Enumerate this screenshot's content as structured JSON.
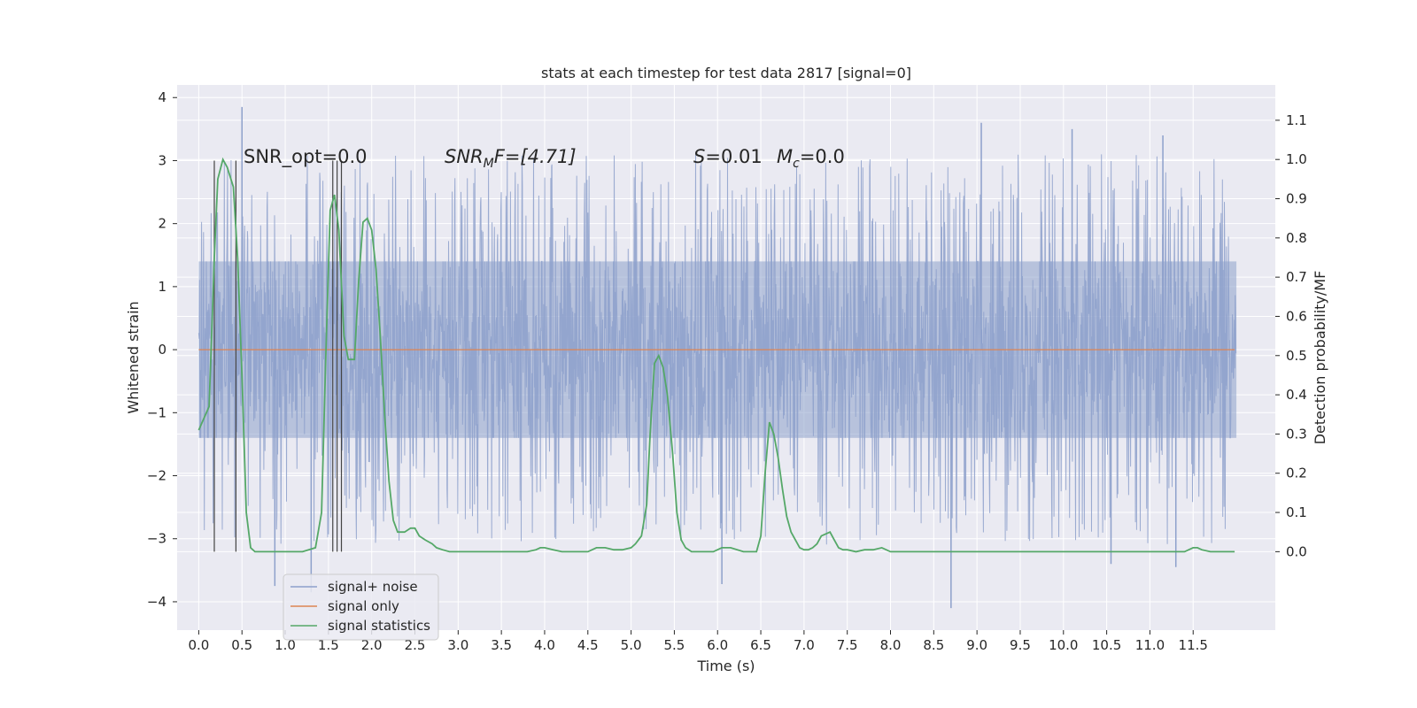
{
  "chart_data": {
    "type": "line",
    "title": "stats at each timestep for test data 2817 [signal=0]",
    "xlabel": "Time (s)",
    "ylabel_left": "Whitened strain",
    "ylabel_right": "Detection probability/MF",
    "xlim": [
      -0.25,
      12.45
    ],
    "ylim_left": [
      -4.45,
      4.2
    ],
    "ylim_right": [
      -0.2,
      1.19
    ],
    "x_ticks": [
      "0.0",
      "0.5",
      "1.0",
      "1.5",
      "2.0",
      "2.5",
      "3.0",
      "3.5",
      "4.0",
      "4.5",
      "5.0",
      "5.5",
      "6.0",
      "6.5",
      "7.0",
      "7.5",
      "8.0",
      "8.5",
      "9.0",
      "9.5",
      "10.0",
      "10.5",
      "11.0",
      "11.5"
    ],
    "y_ticks_left": [
      "−4",
      "−3",
      "−2",
      "−1",
      "0",
      "1",
      "2",
      "3",
      "4"
    ],
    "y_ticks_right": [
      "0.0",
      "0.1",
      "0.2",
      "0.3",
      "0.4",
      "0.5",
      "0.6",
      "0.7",
      "0.8",
      "0.9",
      "1.0",
      "1.1"
    ],
    "grid": true,
    "legend_position": "lower-left",
    "annotations": {
      "snr_opt_label": "SNR_opt=0.0",
      "snr_mf_main": "SNR",
      "snr_mf_sub": "M",
      "snr_mf_tail": "F=[4.71]",
      "s_main": "S",
      "s_tail": "=0.01",
      "mc_main": "M",
      "mc_sub": "c",
      "mc_tail": "=0.0"
    },
    "series": [
      {
        "name": "signal+ noise",
        "color": "#8da0cb",
        "axis": "left",
        "duration": 12.0,
        "amplitude_band": [
          -1.4,
          1.4
        ],
        "spikes": [
          [
            0.5,
            3.85
          ],
          [
            0.88,
            -3.75
          ],
          [
            1.3,
            -3.85
          ],
          [
            6.05,
            -3.72
          ],
          [
            8.7,
            -4.1
          ],
          [
            10.55,
            -3.4
          ],
          [
            11.3,
            -3.45
          ],
          [
            9.05,
            3.6
          ],
          [
            10.1,
            3.5
          ],
          [
            11.15,
            3.4
          ]
        ]
      },
      {
        "name": "signal only",
        "color": "#dd8452",
        "axis": "left",
        "x": [
          0.0,
          11.98
        ],
        "y": [
          0.0,
          0.0
        ]
      },
      {
        "name": "signal statistics",
        "color": "#55a868",
        "axis": "right",
        "x": [
          0.0,
          0.12,
          0.18,
          0.22,
          0.28,
          0.33,
          0.4,
          0.45,
          0.5,
          0.55,
          0.6,
          0.65,
          0.72,
          0.8,
          0.9,
          1.0,
          1.2,
          1.35,
          1.42,
          1.47,
          1.52,
          1.57,
          1.62,
          1.68,
          1.73,
          1.8,
          1.85,
          1.9,
          1.95,
          2.0,
          2.05,
          2.1,
          2.15,
          2.2,
          2.25,
          2.3,
          2.38,
          2.45,
          2.5,
          2.55,
          2.62,
          2.7,
          2.75,
          2.82,
          2.9,
          3.0,
          3.2,
          3.6,
          3.8,
          3.9,
          3.95,
          4.0,
          4.1,
          4.2,
          4.3,
          4.5,
          4.6,
          4.7,
          4.8,
          4.9,
          5.0,
          5.05,
          5.12,
          5.18,
          5.22,
          5.27,
          5.32,
          5.37,
          5.42,
          5.48,
          5.53,
          5.58,
          5.63,
          5.7,
          5.8,
          5.95,
          6.05,
          6.15,
          6.3,
          6.45,
          6.5,
          6.55,
          6.6,
          6.65,
          6.7,
          6.75,
          6.8,
          6.85,
          6.9,
          6.95,
          7.0,
          7.05,
          7.1,
          7.15,
          7.2,
          7.3,
          7.35,
          7.4,
          7.45,
          7.5,
          7.6,
          7.7,
          7.8,
          7.9,
          8.0,
          8.2,
          8.6,
          9.0,
          9.5,
          10.0,
          10.5,
          11.0,
          11.4,
          11.5,
          11.55,
          11.6,
          11.7,
          11.8,
          11.9,
          11.98
        ],
        "y": [
          0.31,
          0.37,
          0.75,
          0.95,
          1.0,
          0.98,
          0.93,
          0.75,
          0.45,
          0.1,
          0.01,
          0.0,
          0.0,
          0.0,
          0.0,
          0.0,
          0.0,
          0.01,
          0.1,
          0.5,
          0.87,
          0.91,
          0.82,
          0.55,
          0.49,
          0.49,
          0.69,
          0.84,
          0.85,
          0.82,
          0.72,
          0.55,
          0.35,
          0.18,
          0.08,
          0.05,
          0.05,
          0.06,
          0.06,
          0.04,
          0.03,
          0.02,
          0.01,
          0.005,
          0.0,
          0.0,
          0.0,
          0.0,
          0.0,
          0.005,
          0.01,
          0.01,
          0.005,
          0.0,
          0.0,
          0.0,
          0.01,
          0.01,
          0.005,
          0.005,
          0.01,
          0.02,
          0.04,
          0.12,
          0.3,
          0.48,
          0.5,
          0.47,
          0.4,
          0.25,
          0.1,
          0.03,
          0.01,
          0.0,
          0.0,
          0.0,
          0.01,
          0.01,
          0.0,
          0.0,
          0.04,
          0.2,
          0.33,
          0.3,
          0.24,
          0.16,
          0.09,
          0.05,
          0.03,
          0.01,
          0.005,
          0.005,
          0.01,
          0.02,
          0.04,
          0.05,
          0.03,
          0.01,
          0.005,
          0.005,
          0.0,
          0.005,
          0.005,
          0.01,
          0.0,
          0.0,
          0.0,
          0.0,
          0.0,
          0.0,
          0.0,
          0.0,
          0.0,
          0.01,
          0.01,
          0.005,
          0.0,
          0.0,
          0.0,
          0.0
        ],
        "markers_x": [
          0.18,
          0.43,
          1.55,
          1.6,
          1.65
        ]
      }
    ]
  }
}
